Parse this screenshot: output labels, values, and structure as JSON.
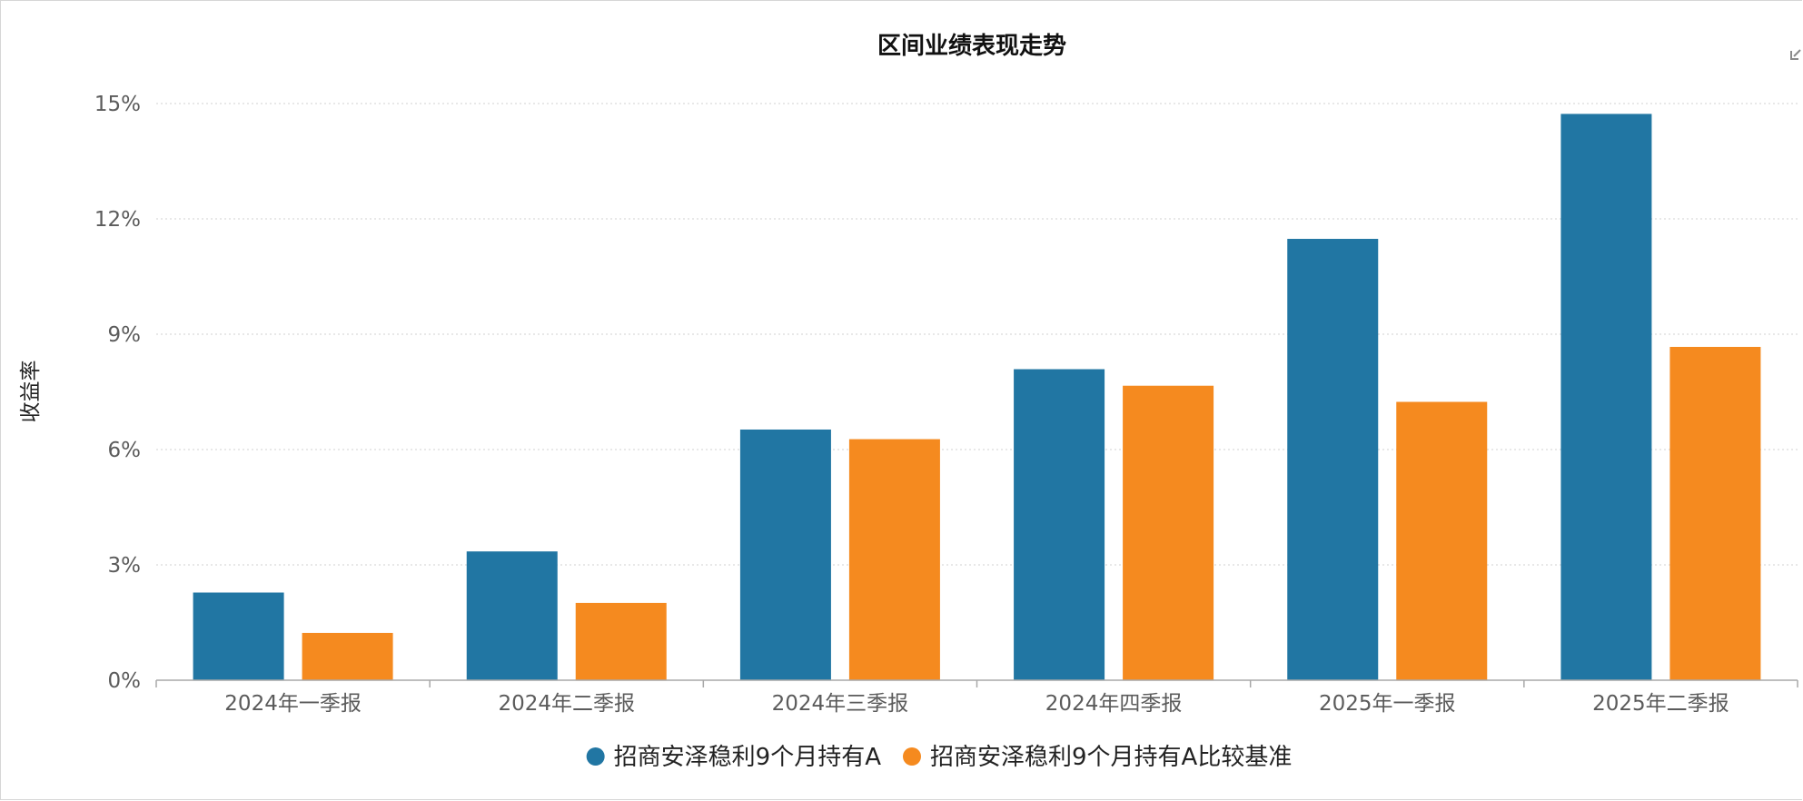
{
  "chart_data": {
    "type": "bar",
    "title": "区间业绩表现走势",
    "xlabel": "",
    "ylabel": "收益率",
    "categories": [
      "2024年一季报",
      "2024年二季报",
      "2024年三季报",
      "2024年四季报",
      "2025年一季报",
      "2025年二季报"
    ],
    "series": [
      {
        "name": "招商安泽稳利9个月持有A",
        "color": "#2176a3",
        "values": [
          2.28,
          3.35,
          6.52,
          8.09,
          11.48,
          14.73
        ]
      },
      {
        "name": "招商安泽稳利9个月持有A比较基准",
        "color": "#f58a1f",
        "values": [
          1.23,
          2.01,
          6.27,
          7.66,
          7.24,
          8.67
        ]
      }
    ],
    "ylim": [
      0,
      15
    ],
    "yticks": [
      0,
      3,
      6,
      9,
      12,
      15
    ],
    "ytick_labels": [
      "0%",
      "3%",
      "6%",
      "9%",
      "12%",
      "15%"
    ],
    "grid": true,
    "grid_style": "dotted",
    "legend_position": "bottom-center"
  },
  "colors": {
    "axis": "#a8a8a8",
    "grid": "#d9d9d9",
    "tick_text": "#5b5b5b",
    "title_text": "#111111"
  },
  "icons": {
    "corner": "expand-icon"
  }
}
